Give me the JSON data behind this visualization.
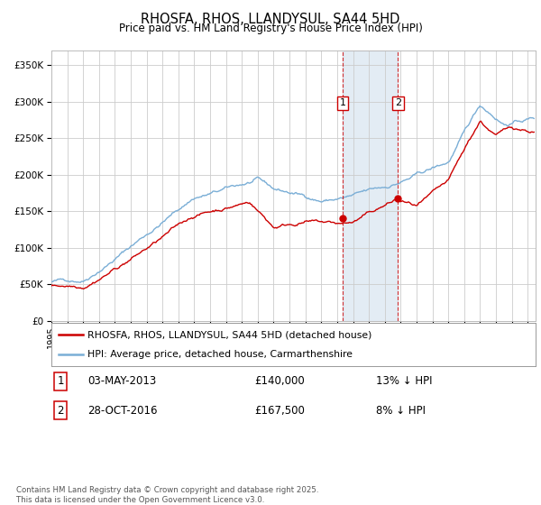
{
  "title": "RHOSFA, RHOS, LLANDYSUL, SA44 5HD",
  "subtitle": "Price paid vs. HM Land Registry's House Price Index (HPI)",
  "red_label": "RHOSFA, RHOS, LLANDYSUL, SA44 5HD (detached house)",
  "blue_label": "HPI: Average price, detached house, Carmarthenshire",
  "annotation1_date": "03-MAY-2013",
  "annotation1_price": "£140,000",
  "annotation1_hpi": "13% ↓ HPI",
  "annotation2_date": "28-OCT-2016",
  "annotation2_price": "£167,500",
  "annotation2_hpi": "8% ↓ HPI",
  "footer": "Contains HM Land Registry data © Crown copyright and database right 2025.\nThis data is licensed under the Open Government Licence v3.0.",
  "ylim": [
    0,
    370000
  ],
  "yticks": [
    0,
    50000,
    100000,
    150000,
    200000,
    250000,
    300000,
    350000
  ],
  "background_color": "#ffffff",
  "grid_color": "#cccccc",
  "red_color": "#cc0000",
  "blue_color": "#7aaed6",
  "shade_color": "#d8e4f0",
  "sale1_year": 2013.35,
  "sale1_price": 140000,
  "sale2_year": 2016.83,
  "sale2_price": 167500,
  "xlim_left": 1995,
  "xlim_right": 2025.5
}
